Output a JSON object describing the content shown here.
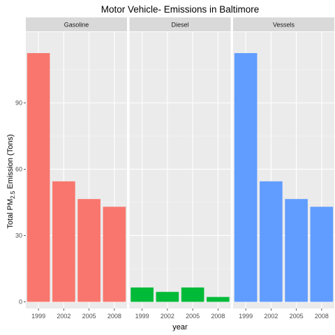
{
  "chart_data": {
    "type": "bar",
    "title": "Motor Vehicle- Emissions in Baltimore",
    "xlabel": "year",
    "ylabel": {
      "prefix": "Total PM",
      "subscript": "2.5",
      "suffix": " Emission (Tons)"
    },
    "categories": [
      "1999",
      "2002",
      "2005",
      "2008"
    ],
    "ylim": [
      -3,
      122
    ],
    "yticks": [
      0,
      30,
      60,
      90
    ],
    "grid": true,
    "legend": "none",
    "series": [
      {
        "name": "Gasoline",
        "color": "#F8766D",
        "values": [
          112.5,
          54.5,
          46.5,
          43.0
        ]
      },
      {
        "name": "Diesel",
        "color": "#00BA38",
        "values": [
          6.5,
          4.5,
          6.5,
          2.2
        ]
      },
      {
        "name": "Vessels",
        "color": "#619CFF",
        "values": [
          112.5,
          54.5,
          46.5,
          43.0
        ]
      }
    ]
  }
}
